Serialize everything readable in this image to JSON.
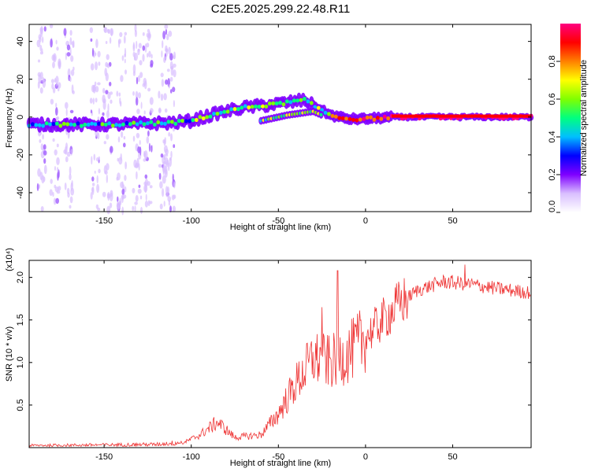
{
  "title": "C2E5.2025.299.22.48.R11",
  "colors": {
    "snr_line": "#ee3333",
    "axis": "#000000",
    "background": "#ffffff"
  },
  "chart_data": [
    {
      "type": "heatmap",
      "name": "spectrogram",
      "xlabel": "Height of straight line (km)",
      "ylabel": "Frequency (Hz)",
      "xlim": [
        -193,
        95
      ],
      "ylim": [
        -50,
        49
      ],
      "xticks": [
        -150,
        -100,
        -50,
        0,
        50
      ],
      "yticks": [
        -40,
        -20,
        0,
        20,
        40
      ],
      "colorbar": {
        "label": "Normalized spectral amplitude",
        "range": [
          0,
          1
        ],
        "ticks": [
          "0.0",
          "0.2",
          "0.4",
          "0.6",
          "0.8"
        ],
        "tick_values": [
          0.0,
          0.2,
          0.4,
          0.6,
          0.8
        ],
        "colormap": [
          "#ffffff",
          "#d9bfff",
          "#7f00ff",
          "#0000ff",
          "#00bfff",
          "#00ff80",
          "#80ff00",
          "#ffff00",
          "#ff8000",
          "#ff0000",
          "#ff0080"
        ]
      },
      "ridge": [
        {
          "x": -193,
          "y": -4
        },
        {
          "x": -150,
          "y": -4
        },
        {
          "x": -110,
          "y": -3
        },
        {
          "x": -100,
          "y": -2
        },
        {
          "x": -85,
          "y": 2
        },
        {
          "x": -70,
          "y": 5
        },
        {
          "x": -50,
          "y": 7
        },
        {
          "x": -35,
          "y": 9
        },
        {
          "x": -28,
          "y": 5
        },
        {
          "x": -20,
          "y": 1
        },
        {
          "x": -10,
          "y": -1
        },
        {
          "x": 0,
          "y": -1
        },
        {
          "x": 15,
          "y": 0
        },
        {
          "x": 95,
          "y": 0
        }
      ],
      "secondary_ridge": [
        {
          "x": -60,
          "y": -2
        },
        {
          "x": -45,
          "y": 1
        },
        {
          "x": -30,
          "y": 3
        },
        {
          "x": -25,
          "y": 1
        }
      ],
      "noise_columns_x": [
        -186,
        -178,
        -170,
        -155,
        -148,
        -140,
        -131,
        -125,
        -116,
        -112
      ]
    },
    {
      "type": "line",
      "name": "snr",
      "xlabel": "Height of straight line (km)",
      "ylabel": "SNR (10 * v/v)",
      "multiplier": "(x10⁴)",
      "xlim": [
        -193,
        95
      ],
      "ylim": [
        0,
        2.2
      ],
      "xticks": [
        -150,
        -100,
        -50,
        0,
        50
      ],
      "yticks": [
        0.5,
        1.0,
        1.5,
        2.0
      ],
      "ytick_labels": [
        "0.5",
        "1.0",
        "1.5",
        "2.0"
      ],
      "envelope": [
        {
          "x": -193,
          "y": 0.02
        },
        {
          "x": -120,
          "y": 0.03
        },
        {
          "x": -105,
          "y": 0.05
        },
        {
          "x": -95,
          "y": 0.15
        },
        {
          "x": -85,
          "y": 0.3
        },
        {
          "x": -75,
          "y": 0.12
        },
        {
          "x": -60,
          "y": 0.15
        },
        {
          "x": -50,
          "y": 0.4
        },
        {
          "x": -40,
          "y": 0.75
        },
        {
          "x": -30,
          "y": 1.05
        },
        {
          "x": -20,
          "y": 1.0
        },
        {
          "x": -10,
          "y": 1.1
        },
        {
          "x": 0,
          "y": 1.3
        },
        {
          "x": 10,
          "y": 1.5
        },
        {
          "x": 20,
          "y": 1.7
        },
        {
          "x": 30,
          "y": 1.85
        },
        {
          "x": 45,
          "y": 1.95
        },
        {
          "x": 60,
          "y": 1.92
        },
        {
          "x": 75,
          "y": 1.87
        },
        {
          "x": 95,
          "y": 1.82
        }
      ],
      "spikes": [
        {
          "x": -25,
          "y": 1.65
        },
        {
          "x": -16,
          "y": 2.08
        },
        {
          "x": 57,
          "y": 2.15
        }
      ]
    }
  ]
}
